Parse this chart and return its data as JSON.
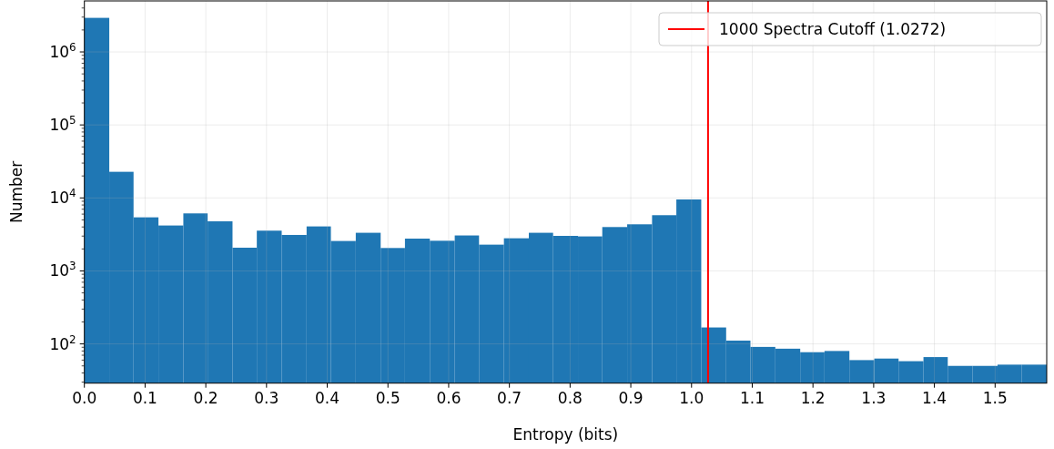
{
  "chart_data": {
    "type": "histogram",
    "xlabel": "Entropy (bits)",
    "ylabel": "Number",
    "color": "#1f77b4",
    "bins": [
      0,
      0.041,
      0.081,
      0.122,
      0.163,
      0.203,
      0.244,
      0.284,
      0.325,
      0.366,
      0.406,
      0.447,
      0.488,
      0.528,
      0.569,
      0.61,
      0.65,
      0.691,
      0.732,
      0.772,
      0.813,
      0.853,
      0.894,
      0.935,
      0.975,
      1.016,
      1.057,
      1.097,
      1.138,
      1.179,
      1.219,
      1.26,
      1.301,
      1.341,
      1.382,
      1.422,
      1.463,
      1.504,
      1.544,
      1.585
    ],
    "values": [
      2930000,
      22800,
      5420,
      4190,
      6140,
      4780,
      2080,
      3560,
      3110,
      4070,
      2570,
      3330,
      2060,
      2770,
      2590,
      3060,
      2290,
      2800,
      3330,
      3020,
      2970,
      3990,
      4350,
      5800,
      9530,
      168,
      111,
      91,
      86,
      77,
      80,
      60,
      63,
      58,
      66,
      50,
      50,
      52,
      52
    ],
    "log": "y",
    "xlim": [
      0,
      1.585
    ],
    "ylim": [
      29,
      5000000
    ],
    "xticks": [
      {
        "value": 0,
        "label": "0.0"
      },
      0.1,
      0.2,
      0.3,
      0.4,
      0.5,
      0.6,
      0.7,
      0.8,
      0.9,
      {
        "value": 1,
        "label": "1.0"
      },
      1.1,
      1.2,
      1.3,
      1.4,
      1.5
    ],
    "yticks": [
      {
        "value": 30,
        "label": null
      },
      {
        "value": 40,
        "label": null
      },
      {
        "value": 50,
        "label": null
      },
      {
        "value": 60,
        "label": null
      },
      {
        "value": 70,
        "label": null
      },
      {
        "value": 80,
        "label": null
      },
      {
        "value": 90,
        "label": null
      },
      {
        "value": 100,
        "label": "10$^{2}$"
      },
      {
        "value": 200,
        "label": null
      },
      {
        "value": 300,
        "label": null
      },
      {
        "value": 400,
        "label": null
      },
      {
        "value": 500,
        "label": null
      },
      {
        "value": 600,
        "label": null
      },
      {
        "value": 700,
        "label": null
      },
      {
        "value": 800,
        "label": null
      },
      {
        "value": 900,
        "label": null
      },
      {
        "value": 1000,
        "label": "10$^{3}$"
      },
      {
        "value": 2000,
        "label": null
      },
      {
        "value": 3000,
        "label": null
      },
      {
        "value": 4000,
        "label": null
      },
      {
        "value": 5000,
        "label": null
      },
      {
        "value": 6000,
        "label": null
      },
      {
        "value": 7000,
        "label": null
      },
      {
        "value": 8000,
        "label": null
      },
      {
        "value": 9000,
        "label": null
      },
      {
        "value": 10000,
        "label": "10$^{4}$"
      },
      {
        "value": 20000,
        "label": null
      },
      {
        "value": 30000,
        "label": null
      },
      {
        "value": 40000,
        "label": null
      },
      {
        "value": 50000,
        "label": null
      },
      {
        "value": 60000,
        "label": null
      },
      {
        "value": 70000,
        "label": null
      },
      {
        "value": 80000,
        "label": null
      },
      {
        "value": 90000,
        "label": null
      },
      {
        "value": 100000,
        "label": "10$^{5}$"
      },
      {
        "value": 200000,
        "label": null
      },
      {
        "value": 300000,
        "label": null
      },
      {
        "value": 400000,
        "label": null
      },
      {
        "value": 500000,
        "label": null
      },
      {
        "value": 600000,
        "label": null
      },
      {
        "value": 700000,
        "label": null
      },
      {
        "value": 800000,
        "label": null
      },
      {
        "value": 900000,
        "label": null
      },
      {
        "value": 1000000,
        "label": "10$^{6}$"
      },
      {
        "value": 2000000,
        "label": null
      },
      {
        "value": 3000000,
        "label": null
      },
      {
        "value": 4000000,
        "label": null
      }
    ],
    "grid": true,
    "legend": "top right",
    "ref_lines": [
      {
        "axis": "x",
        "value": 1.0272,
        "label": "1000 Spectra Cutoff (1.0272)",
        "color": "#ff0000"
      }
    ]
  }
}
